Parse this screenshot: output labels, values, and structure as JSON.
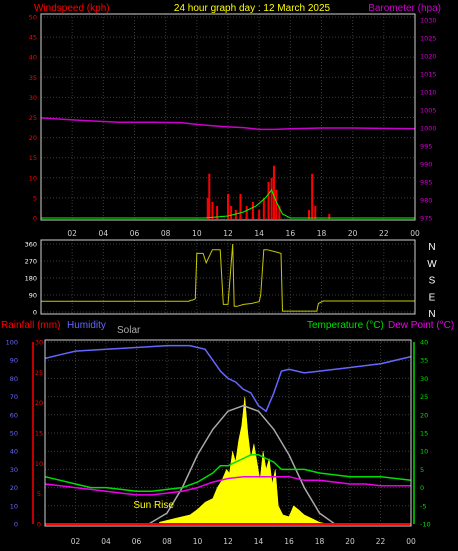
{
  "header": {
    "title": "24 hour graph day : 12 March 2025",
    "windspeed_label": "Windspeed (kph)",
    "barometer_label": "Barometer (hpa)"
  },
  "colors": {
    "wind_speed": "#ff0000",
    "wind_gust": "#00ff00",
    "barometer": "#cc00cc",
    "direction": "#c8c800",
    "humidity": "#6666ff",
    "rainfall": "#ff0000",
    "temperature": "#00dd00",
    "dew_point": "#ee00ee",
    "solar": "#ffff00",
    "solar_theory": "#aaaaaa",
    "title": "#ffff00",
    "grid": "#3a3a3a"
  },
  "panel1": {
    "left_ticks": [
      "0",
      "5",
      "10",
      "15",
      "20",
      "25",
      "30",
      "35",
      "40",
      "45",
      "50"
    ],
    "right_ticks": [
      "975",
      "980",
      "985",
      "990",
      "995",
      "1000",
      "1005",
      "1010",
      "1015",
      "1020",
      "1025",
      "1030"
    ]
  },
  "panel2": {
    "left_ticks": [
      "0",
      "90",
      "180",
      "270",
      "360"
    ],
    "right_labels": [
      "N",
      "W",
      "S",
      "E",
      "N"
    ]
  },
  "panel3": {
    "rainfall_label": "Rainfall (mm)",
    "humidity_label": "Humidity",
    "solar_label": "Solar",
    "temperature_label": "Temperature (°C)",
    "dewpoint_label": "Dew Point (°C)",
    "sunrise_label": "Sun Rise",
    "humidity_ticks": [
      "0",
      "10",
      "20",
      "30",
      "40",
      "50",
      "60",
      "70",
      "80",
      "90",
      "100"
    ],
    "rain_ticks": [
      "0",
      "5",
      "10",
      "15",
      "20",
      "25",
      "30"
    ],
    "temp_ticks": [
      "-10",
      "-5",
      "0",
      "5",
      "10",
      "15",
      "20",
      "25",
      "30",
      "35",
      "40"
    ]
  },
  "x_ticks": [
    "02",
    "04",
    "06",
    "08",
    "10",
    "12",
    "14",
    "16",
    "18",
    "20",
    "22",
    "00"
  ],
  "chart_data": [
    {
      "type": "line",
      "title": "24 hour graph day : 12 March 2025",
      "x_unit": "hour",
      "xlim": [
        0,
        24
      ],
      "y_left_label": "Windspeed (kph)",
      "y_left_range": [
        0,
        50
      ],
      "y_right_label": "Barometer (hpa)",
      "y_right_range": [
        975,
        1030
      ],
      "barometer": {
        "x": [
          0,
          1.5,
          3,
          5,
          7,
          9,
          10,
          11,
          12,
          13,
          14,
          15,
          16,
          18,
          20,
          22,
          24
        ],
        "values": [
          1002.8,
          1002.4,
          1002.0,
          1001.6,
          1001.6,
          1001.5,
          1001.0,
          1000.6,
          1000.3,
          1000.1,
          999.6,
          999.6,
          999.8,
          1000.0,
          1000.0,
          999.9,
          999.8
        ]
      },
      "wind_bars": [
        {
          "x": 10.7,
          "value": 5
        },
        {
          "x": 10.8,
          "value": 11
        },
        {
          "x": 11.0,
          "value": 4
        },
        {
          "x": 11.3,
          "value": 3
        },
        {
          "x": 12.0,
          "value": 6
        },
        {
          "x": 12.2,
          "value": 3
        },
        {
          "x": 12.5,
          "value": 2
        },
        {
          "x": 12.8,
          "value": 6
        },
        {
          "x": 13.2,
          "value": 3
        },
        {
          "x": 13.6,
          "value": 4
        },
        {
          "x": 14.0,
          "value": 2
        },
        {
          "x": 14.3,
          "value": 5
        },
        {
          "x": 14.6,
          "value": 9
        },
        {
          "x": 14.8,
          "value": 10
        },
        {
          "x": 14.95,
          "value": 13
        },
        {
          "x": 15.1,
          "value": 7
        },
        {
          "x": 15.3,
          "value": 3
        },
        {
          "x": 17.2,
          "value": 2
        },
        {
          "x": 17.4,
          "value": 11
        },
        {
          "x": 17.6,
          "value": 3
        },
        {
          "x": 18.5,
          "value": 1
        }
      ],
      "wind_avg": {
        "x": [
          0,
          10.5,
          12,
          13,
          13.8,
          14.4,
          14.8,
          15.1,
          15.5,
          16,
          24
        ],
        "values": [
          0,
          0,
          0.5,
          1.5,
          3,
          5,
          7,
          4,
          1,
          0,
          0
        ]
      }
    },
    {
      "type": "line",
      "xlim": [
        0,
        24
      ],
      "y_left_range": [
        0,
        360
      ],
      "direction": {
        "x": [
          0,
          9.5,
          9.6,
          9.7,
          9.9,
          10.0,
          10.4,
          10.6,
          11.0,
          11.5,
          11.7,
          12.0,
          12.3,
          12.4,
          12.6,
          13.0,
          13.5,
          14.0,
          14.1,
          14.3,
          14.5,
          15.0,
          15.4,
          15.5,
          15.8,
          17.7,
          17.8,
          18.1,
          24
        ],
        "values": [
          57,
          57,
          62,
          62,
          70,
          310,
          310,
          260,
          330,
          330,
          40,
          40,
          360,
          30,
          30,
          40,
          45,
          55,
          90,
          330,
          330,
          320,
          310,
          5,
          5,
          5,
          45,
          58,
          58
        ]
      }
    },
    {
      "type": "line",
      "xlim": [
        0,
        24
      ],
      "y_humidity_range": [
        0,
        100
      ],
      "y_rain_range": [
        0,
        30
      ],
      "y_temp_range": [
        -10,
        40
      ],
      "humidity": {
        "x": [
          0,
          1,
          2,
          4,
          6,
          8,
          9.5,
          10.5,
          11,
          11.5,
          12,
          12.5,
          13,
          13.5,
          14,
          14.5,
          15,
          15.5,
          16,
          17,
          18,
          20,
          22,
          24
        ],
        "values": [
          91,
          93,
          95,
          96,
          97,
          98,
          98,
          96,
          90,
          84,
          80,
          78,
          74,
          72,
          65,
          62,
          72,
          84,
          85,
          83,
          84,
          86,
          88,
          92
        ]
      },
      "temperature": {
        "x": [
          0,
          1,
          2,
          3,
          4,
          5,
          6,
          7,
          8,
          9,
          10,
          11,
          11.5,
          12,
          12.5,
          13,
          13.5,
          14,
          14.5,
          15,
          15.5,
          16,
          17,
          18,
          19,
          20,
          21,
          22,
          24
        ],
        "values": [
          3,
          2,
          1,
          0,
          0,
          -0.5,
          -1,
          -1,
          -0.5,
          0,
          1.5,
          4,
          6,
          6,
          7,
          8,
          9,
          9,
          8,
          7,
          5,
          5,
          5,
          4,
          3.5,
          3,
          3,
          3,
          2
        ]
      },
      "dew_point": {
        "x": [
          0,
          1,
          2,
          3,
          4,
          5,
          6,
          7,
          8,
          9,
          10,
          11,
          12,
          13,
          14,
          15,
          16,
          17,
          18,
          19,
          20,
          21,
          22,
          24
        ],
        "values": [
          1,
          0.5,
          0,
          -0.5,
          -1,
          -1.5,
          -2,
          -2,
          -1.5,
          -1,
          0,
          1.5,
          2.5,
          3,
          3,
          3,
          3,
          2,
          2,
          1.5,
          1,
          1,
          0.5,
          0.5
        ]
      },
      "rainfall": {
        "x": [
          0,
          24
        ],
        "values": [
          0,
          0
        ]
      },
      "solar_theory": {
        "x": [
          6.8,
          8,
          9,
          10,
          11,
          12,
          13,
          14,
          15,
          16,
          17,
          18,
          19
        ],
        "values": [
          0,
          6,
          20,
          38,
          52,
          62,
          65,
          62,
          52,
          38,
          20,
          6,
          0
        ]
      },
      "solar": {
        "x": [
          7.5,
          8.5,
          9.5,
          10,
          10.5,
          11,
          11.3,
          11.6,
          11.9,
          12.1,
          12.3,
          12.5,
          12.7,
          12.9,
          13.1,
          13.3,
          13.5,
          13.7,
          13.9,
          14.1,
          14.3,
          14.5,
          14.7,
          14.9,
          15.1,
          15.3,
          15.6,
          16,
          16.3,
          16.6,
          17,
          17.5,
          18,
          18.5
        ],
        "values": [
          1,
          3,
          5,
          8,
          12,
          14,
          20,
          24,
          30,
          28,
          40,
          34,
          46,
          54,
          70,
          50,
          36,
          44,
          34,
          24,
          40,
          30,
          36,
          22,
          30,
          10,
          5,
          4,
          10,
          8,
          5,
          3,
          1,
          0
        ]
      }
    }
  ]
}
